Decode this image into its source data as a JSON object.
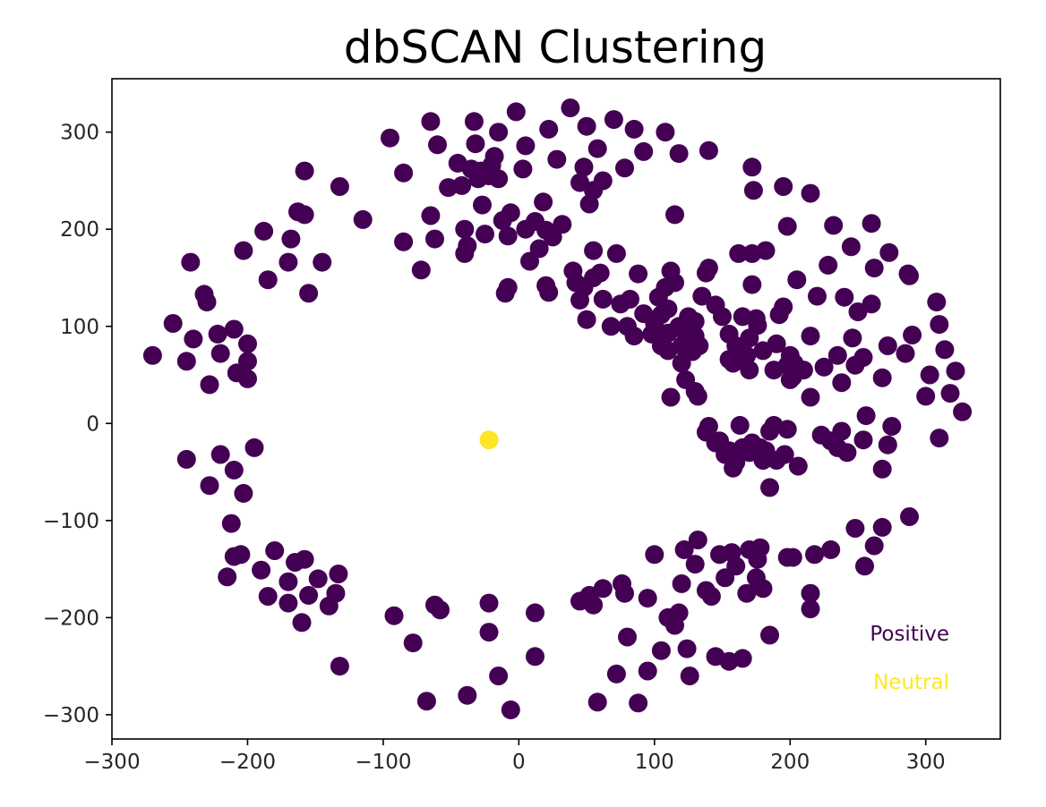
{
  "chart_data": {
    "type": "scatter",
    "title": "dbSCAN Clustering",
    "xlabel": "",
    "ylabel": "",
    "xlim": [
      -300,
      355
    ],
    "ylim": [
      -325,
      355
    ],
    "xticks": [
      -300,
      -200,
      -100,
      0,
      100,
      200,
      300
    ],
    "yticks": [
      -300,
      -200,
      -100,
      0,
      100,
      200,
      300
    ],
    "xtick_labels": [
      "−300",
      "−200",
      "−100",
      "0",
      "100",
      "200",
      "300"
    ],
    "ytick_labels": [
      "−300",
      "−200",
      "−100",
      "0",
      "100",
      "200",
      "300"
    ],
    "grid": false,
    "legend_placement": "bottom-right",
    "colors": {
      "positive": "#440154",
      "neutral": "#fde725"
    },
    "series": [
      {
        "name": "Positive",
        "color": "#440154",
        "points": [
          [
            -270,
            70
          ],
          [
            -255,
            103
          ],
          [
            -245,
            64
          ],
          [
            -242,
            166
          ],
          [
            -240,
            87
          ],
          [
            -232,
            133
          ],
          [
            -230,
            125
          ],
          [
            -228,
            40
          ],
          [
            -222,
            92
          ],
          [
            -220,
            72
          ],
          [
            -210,
            97
          ],
          [
            -208,
            52
          ],
          [
            -200,
            82
          ],
          [
            -200,
            64
          ],
          [
            -200,
            46
          ],
          [
            -203,
            178
          ],
          [
            -188,
            198
          ],
          [
            -185,
            148
          ],
          [
            -170,
            166
          ],
          [
            -168,
            190
          ],
          [
            -163,
            218
          ],
          [
            -158,
            215
          ],
          [
            -158,
            260
          ],
          [
            -155,
            134
          ],
          [
            -145,
            166
          ],
          [
            -132,
            244
          ],
          [
            -115,
            210
          ],
          [
            -245,
            -37
          ],
          [
            -228,
            -64
          ],
          [
            -220,
            -32
          ],
          [
            -210,
            -48
          ],
          [
            -203,
            -72
          ],
          [
            -195,
            -25
          ],
          [
            -212,
            -103
          ],
          [
            -210,
            -137
          ],
          [
            -205,
            -135
          ],
          [
            -215,
            -158
          ],
          [
            -190,
            -151
          ],
          [
            -180,
            -131
          ],
          [
            -185,
            -178
          ],
          [
            -170,
            -163
          ],
          [
            -170,
            -185
          ],
          [
            -165,
            -143
          ],
          [
            -160,
            -205
          ],
          [
            -158,
            -140
          ],
          [
            -155,
            -177
          ],
          [
            -148,
            -160
          ],
          [
            -140,
            -188
          ],
          [
            -135,
            -175
          ],
          [
            -133,
            -155
          ],
          [
            -132,
            -250
          ],
          [
            -95,
            294
          ],
          [
            -85,
            258
          ],
          [
            -85,
            187
          ],
          [
            -72,
            158
          ],
          [
            -65,
            311
          ],
          [
            -65,
            214
          ],
          [
            -62,
            190
          ],
          [
            -60,
            287
          ],
          [
            -52,
            243
          ],
          [
            -45,
            268
          ],
          [
            -42,
            245
          ],
          [
            -40,
            200
          ],
          [
            -40,
            175
          ],
          [
            -38,
            183
          ],
          [
            -35,
            262
          ],
          [
            -33,
            311
          ],
          [
            -32,
            288
          ],
          [
            -30,
            252
          ],
          [
            -28,
            260
          ],
          [
            -27,
            225
          ],
          [
            -25,
            195
          ],
          [
            -22,
            255
          ],
          [
            -20,
            266
          ],
          [
            -18,
            275
          ],
          [
            -15,
            252
          ],
          [
            -15,
            300
          ],
          [
            -12,
            209
          ],
          [
            -8,
            193
          ],
          [
            -6,
            217
          ],
          [
            -2,
            321
          ],
          [
            3,
            262
          ],
          [
            5,
            286
          ],
          [
            8,
            167
          ],
          [
            5,
            200
          ],
          [
            12,
            208
          ],
          [
            15,
            180
          ],
          [
            18,
            228
          ],
          [
            20,
            199
          ],
          [
            22,
            303
          ],
          [
            25,
            192
          ],
          [
            28,
            272
          ],
          [
            32,
            205
          ],
          [
            38,
            325
          ],
          [
            45,
            248
          ],
          [
            48,
            264
          ],
          [
            50,
            306
          ],
          [
            52,
            226
          ],
          [
            55,
            240
          ],
          [
            58,
            283
          ],
          [
            62,
            250
          ],
          [
            70,
            313
          ],
          [
            78,
            263
          ],
          [
            85,
            303
          ],
          [
            92,
            280
          ],
          [
            108,
            300
          ],
          [
            118,
            278
          ],
          [
            115,
            215
          ],
          [
            140,
            281
          ],
          [
            172,
            264
          ],
          [
            173,
            240
          ],
          [
            195,
            244
          ],
          [
            198,
            203
          ],
          [
            215,
            237
          ],
          [
            232,
            204
          ],
          [
            245,
            182
          ],
          [
            260,
            206
          ],
          [
            262,
            160
          ],
          [
            273,
            176
          ],
          [
            287,
            154
          ],
          [
            -10,
            134
          ],
          [
            -8,
            140
          ],
          [
            20,
            142
          ],
          [
            22,
            135
          ],
          [
            40,
            157
          ],
          [
            42,
            145
          ],
          [
            45,
            127
          ],
          [
            48,
            140
          ],
          [
            50,
            107
          ],
          [
            55,
            178
          ],
          [
            55,
            150
          ],
          [
            60,
            155
          ],
          [
            62,
            128
          ],
          [
            68,
            100
          ],
          [
            72,
            175
          ],
          [
            75,
            123
          ],
          [
            80,
            100
          ],
          [
            82,
            128
          ],
          [
            85,
            90
          ],
          [
            88,
            154
          ],
          [
            92,
            113
          ],
          [
            98,
            92
          ],
          [
            100,
            103
          ],
          [
            103,
            130
          ],
          [
            105,
            80
          ],
          [
            105,
            112
          ],
          [
            108,
            140
          ],
          [
            110,
            75
          ],
          [
            110,
            93
          ],
          [
            110,
            118
          ],
          [
            112,
            157
          ],
          [
            115,
            145
          ],
          [
            118,
            100
          ],
          [
            120,
            62
          ],
          [
            120,
            80
          ],
          [
            122,
            95
          ],
          [
            125,
            110
          ],
          [
            128,
            74
          ],
          [
            130,
            90
          ],
          [
            130,
            105
          ],
          [
            133,
            80
          ],
          [
            135,
            131
          ],
          [
            138,
            155
          ],
          [
            140,
            160
          ],
          [
            145,
            122
          ],
          [
            150,
            110
          ],
          [
            155,
            92
          ],
          [
            155,
            66
          ],
          [
            158,
            62
          ],
          [
            160,
            80
          ],
          [
            162,
            175
          ],
          [
            165,
            110
          ],
          [
            168,
            70
          ],
          [
            170,
            88
          ],
          [
            170,
            55
          ],
          [
            172,
            175
          ],
          [
            172,
            143
          ],
          [
            175,
            108
          ],
          [
            176,
            101
          ],
          [
            180,
            75
          ],
          [
            182,
            178
          ],
          [
            188,
            55
          ],
          [
            190,
            82
          ],
          [
            192,
            112
          ],
          [
            195,
            120
          ],
          [
            198,
            60
          ],
          [
            200,
            45
          ],
          [
            200,
            70
          ],
          [
            202,
            48
          ],
          [
            203,
            62
          ],
          [
            205,
            148
          ],
          [
            210,
            55
          ],
          [
            215,
            90
          ],
          [
            220,
            131
          ],
          [
            225,
            58
          ],
          [
            228,
            163
          ],
          [
            235,
            70
          ],
          [
            238,
            42
          ],
          [
            240,
            130
          ],
          [
            246,
            88
          ],
          [
            248,
            60
          ],
          [
            250,
            115
          ],
          [
            254,
            68
          ],
          [
            260,
            123
          ],
          [
            268,
            47
          ],
          [
            272,
            80
          ],
          [
            285,
            72
          ],
          [
            288,
            152
          ],
          [
            290,
            91
          ],
          [
            300,
            28
          ],
          [
            303,
            50
          ],
          [
            308,
            125
          ],
          [
            310,
            102
          ],
          [
            314,
            76
          ],
          [
            318,
            31
          ],
          [
            322,
            54
          ],
          [
            327,
            12
          ],
          [
            112,
            27
          ],
          [
            123,
            45
          ],
          [
            130,
            33
          ],
          [
            132,
            28
          ],
          [
            138,
            -9
          ],
          [
            140,
            -3
          ],
          [
            145,
            -20
          ],
          [
            148,
            -18
          ],
          [
            152,
            -32
          ],
          [
            155,
            -28
          ],
          [
            158,
            -46
          ],
          [
            160,
            -40
          ],
          [
            163,
            -2
          ],
          [
            165,
            -25
          ],
          [
            170,
            -30
          ],
          [
            172,
            -20
          ],
          [
            178,
            -25
          ],
          [
            180,
            -38
          ],
          [
            182,
            -28
          ],
          [
            185,
            -8
          ],
          [
            188,
            -2
          ],
          [
            190,
            -38
          ],
          [
            196,
            -32
          ],
          [
            198,
            -6
          ],
          [
            206,
            -44
          ],
          [
            215,
            27
          ],
          [
            223,
            -12
          ],
          [
            230,
            -18
          ],
          [
            235,
            -25
          ],
          [
            238,
            -8
          ],
          [
            242,
            -30
          ],
          [
            254,
            -17
          ],
          [
            256,
            8
          ],
          [
            268,
            -47
          ],
          [
            272,
            -22
          ],
          [
            275,
            -3
          ],
          [
            310,
            -15
          ],
          [
            185,
            -66
          ],
          [
            -78,
            -226
          ],
          [
            -92,
            -198
          ],
          [
            -68,
            -286
          ],
          [
            -62,
            -187
          ],
          [
            -58,
            -192
          ],
          [
            -38,
            -280
          ],
          [
            -22,
            -185
          ],
          [
            -22,
            -215
          ],
          [
            -15,
            -260
          ],
          [
            -6,
            -295
          ],
          [
            12,
            -195
          ],
          [
            12,
            -240
          ],
          [
            45,
            -183
          ],
          [
            52,
            -177
          ],
          [
            55,
            -187
          ],
          [
            58,
            -287
          ],
          [
            62,
            -170
          ],
          [
            72,
            -258
          ],
          [
            76,
            -165
          ],
          [
            78,
            -175
          ],
          [
            80,
            -220
          ],
          [
            88,
            -288
          ],
          [
            95,
            -180
          ],
          [
            95,
            -255
          ],
          [
            100,
            -135
          ],
          [
            105,
            -234
          ],
          [
            110,
            -200
          ],
          [
            115,
            -208
          ],
          [
            118,
            -195
          ],
          [
            120,
            -165
          ],
          [
            122,
            -130
          ],
          [
            124,
            -232
          ],
          [
            126,
            -260
          ],
          [
            130,
            -145
          ],
          [
            132,
            -120
          ],
          [
            138,
            -172
          ],
          [
            142,
            -178
          ],
          [
            145,
            -240
          ],
          [
            148,
            -135
          ],
          [
            152,
            -159
          ],
          [
            155,
            -245
          ],
          [
            157,
            -133
          ],
          [
            160,
            -147
          ],
          [
            165,
            -242
          ],
          [
            168,
            -175
          ],
          [
            170,
            -130
          ],
          [
            175,
            -159
          ],
          [
            176,
            -140
          ],
          [
            178,
            -128
          ],
          [
            180,
            -170
          ],
          [
            185,
            -218
          ],
          [
            198,
            -138
          ],
          [
            202,
            -138
          ],
          [
            215,
            -175
          ],
          [
            215,
            -191
          ],
          [
            218,
            -135
          ],
          [
            230,
            -130
          ],
          [
            248,
            -108
          ],
          [
            255,
            -147
          ],
          [
            262,
            -126
          ],
          [
            268,
            -107
          ],
          [
            288,
            -96
          ]
        ]
      },
      {
        "name": "Neutral",
        "color": "#fde725",
        "points": [
          [
            -22,
            -17
          ]
        ]
      }
    ]
  }
}
